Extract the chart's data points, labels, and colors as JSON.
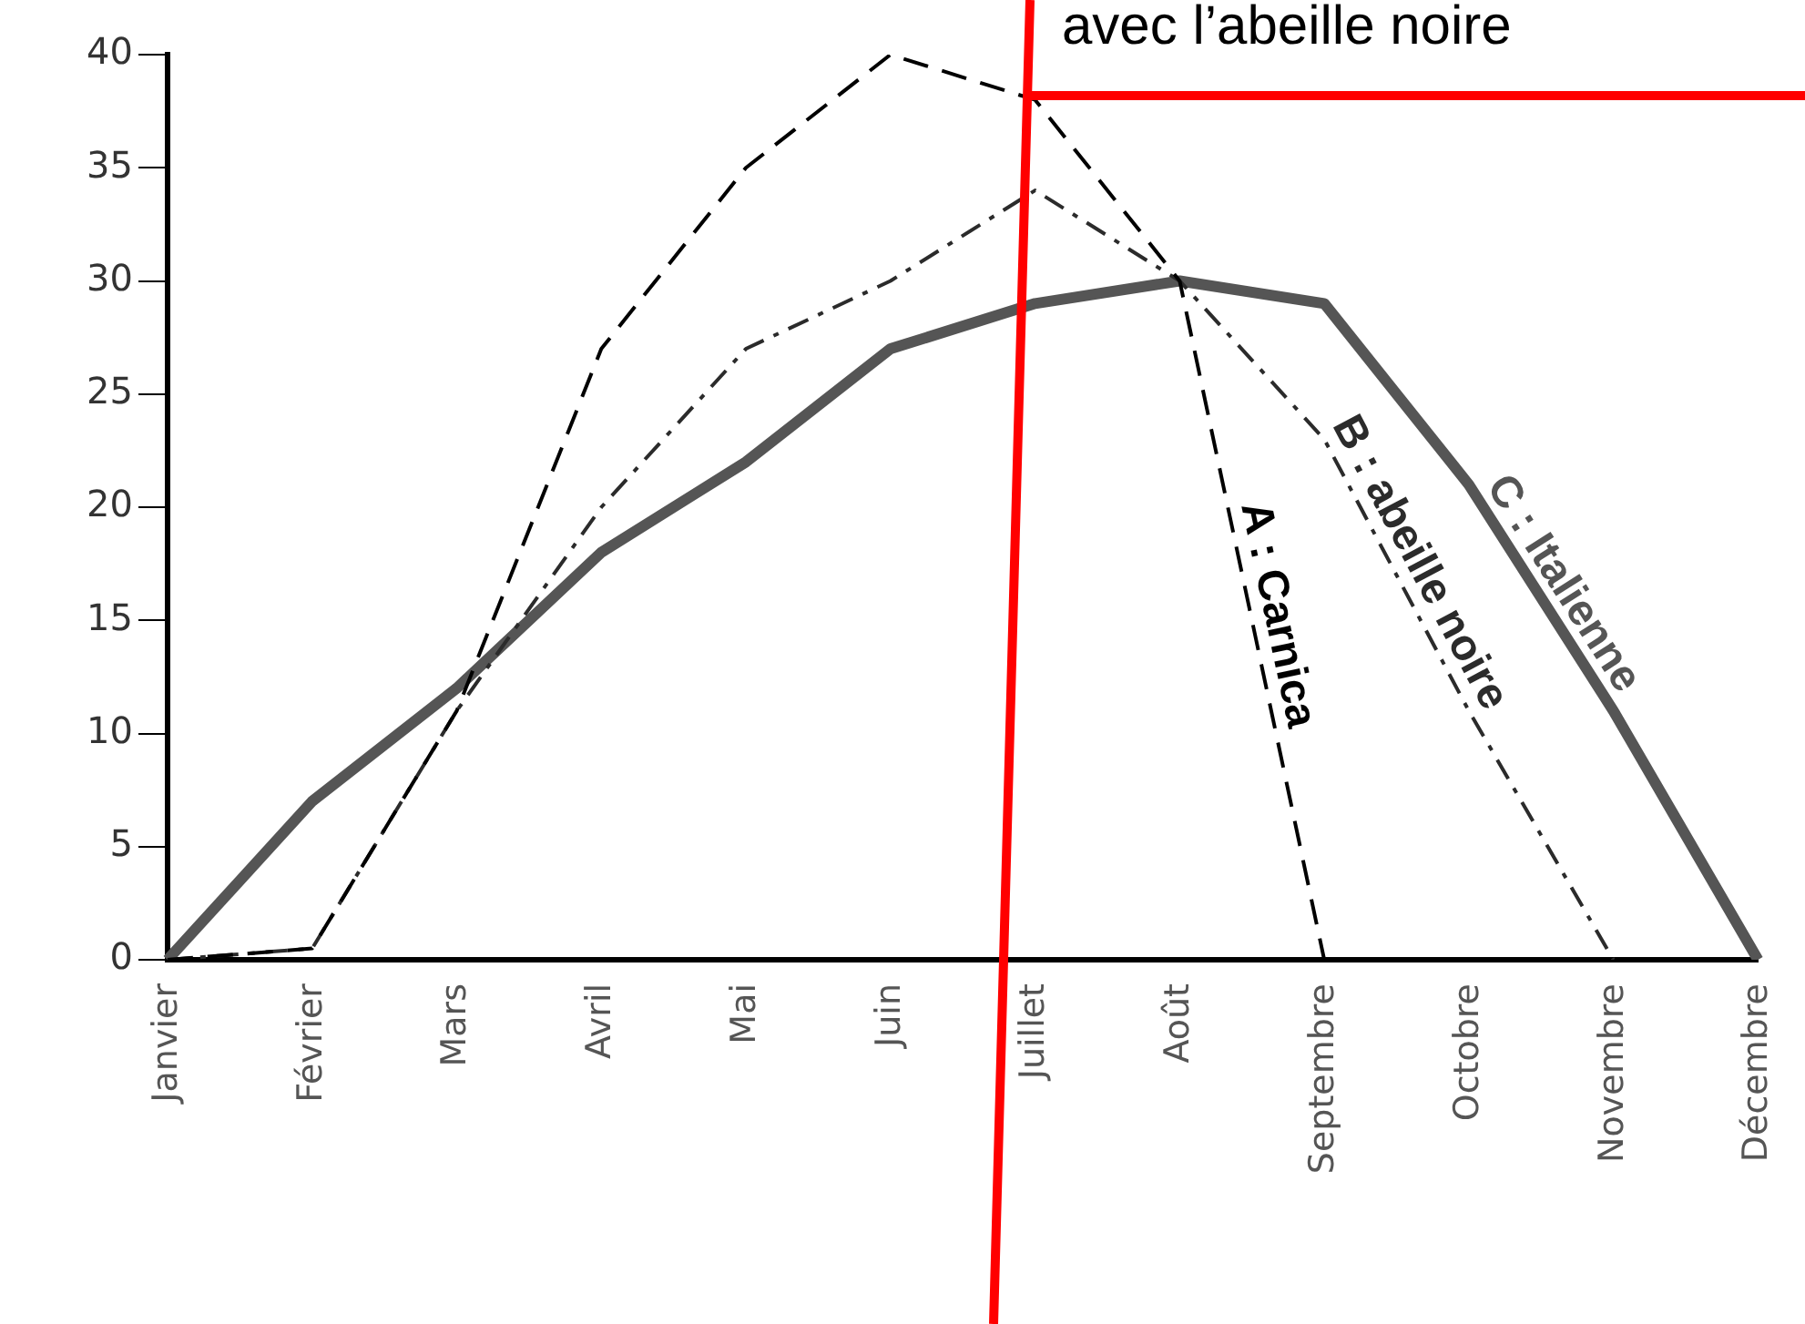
{
  "chart_data": {
    "type": "line",
    "categories": [
      "Janvier",
      "Février",
      "Mars",
      "Avril",
      "Mai",
      "Juin",
      "Juillet",
      "Août",
      "Septembre",
      "Octobre",
      "Novembre",
      "Décembre"
    ],
    "series": [
      {
        "name": "A : Carnica",
        "color": "#000000",
        "line_style": "dashed",
        "values": [
          0,
          0.5,
          11,
          27,
          35,
          40,
          38,
          30,
          0,
          null,
          null,
          null
        ]
      },
      {
        "name": "B : abeille noire",
        "color": "#2b2b2b",
        "line_style": "dotted",
        "values": [
          0,
          0.5,
          11,
          20,
          27,
          30,
          34,
          30,
          23,
          11,
          0,
          null
        ]
      },
      {
        "name": "C : Italienne",
        "color": "#555555",
        "line_style": "solid",
        "values": [
          0,
          7,
          12,
          18,
          22,
          27,
          29,
          30,
          29,
          21,
          11,
          0
        ]
      }
    ],
    "ylim": [
      0,
      40
    ],
    "yticks": [
      0,
      5,
      10,
      15,
      20,
      25,
      30,
      35,
      40
    ],
    "grid": false,
    "legend": false,
    "marker": "none",
    "annotations": [
      "avec l’abeille noire"
    ]
  }
}
